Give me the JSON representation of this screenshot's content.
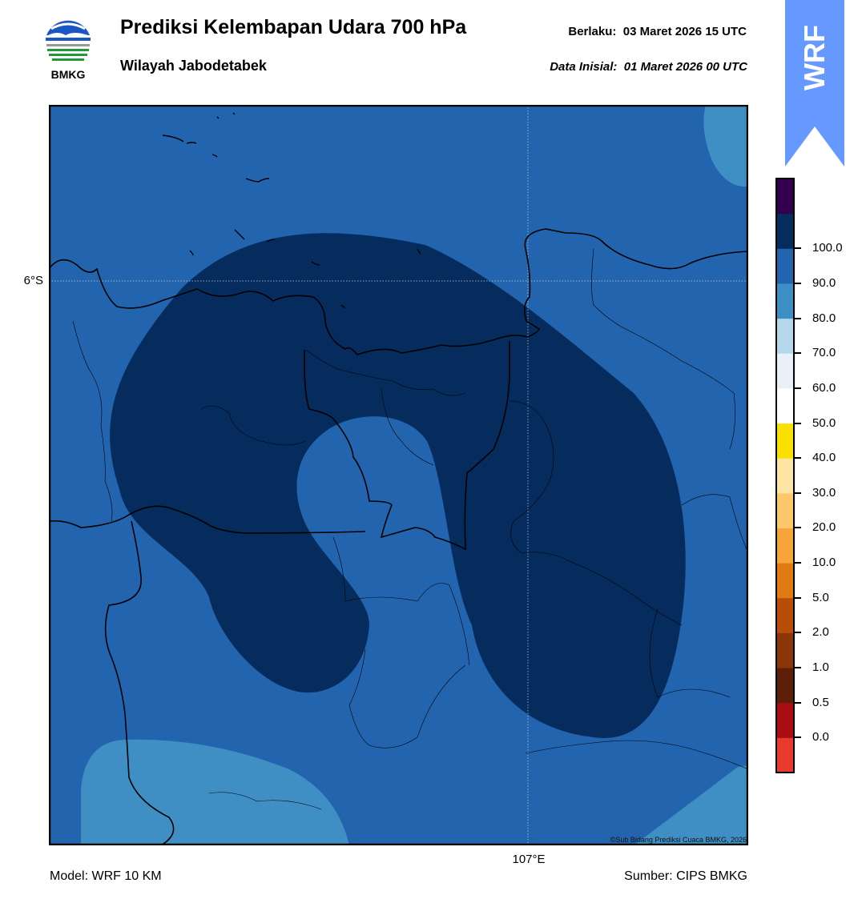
{
  "header": {
    "logo_text": "BMKG",
    "title": "Prediksi Kelembapan Udara 700 hPa",
    "subtitle": "Wilayah Jabodetabek",
    "valid_label": "Berlaku:",
    "valid_value": "03 Maret 2026 15 UTC",
    "init_label": "Data Inisial:",
    "init_value": "01 Maret 2026 00 UTC"
  },
  "badge": {
    "text": "WRF",
    "color": "#6699ff"
  },
  "map": {
    "lat_label": "6°S",
    "lon_label": "107°E",
    "copyright": "©Sub Bidang Prediksi Cuaca BMKG, 2026",
    "fill_colors": {
      "band_80_90": "#2364ae",
      "band_90_100": "#062c5e",
      "band_70_80": "#3f8fc4"
    }
  },
  "colorbar": {
    "ticks": [
      "100.0",
      "90.0",
      "80.0",
      "70.0",
      "60.0",
      "50.0",
      "40.0",
      "30.0",
      "20.0",
      "10.0",
      "5.0",
      "2.0",
      "1.0",
      "0.5",
      "0.0"
    ],
    "colors": [
      "#e8392d",
      "#a80d14",
      "#5e1f0a",
      "#8a3608",
      "#b84d08",
      "#e07a12",
      "#f7a43a",
      "#fdc86c",
      "#fde5a4",
      "#f8e000",
      "#ffffff",
      "#e9f1f8",
      "#b4d8ea",
      "#3e90c4",
      "#2364ae",
      "#062c5e",
      "#33004d"
    ]
  },
  "footer": {
    "model": "Model: WRF 10 KM",
    "source": "Sumber: CIPS BMKG"
  }
}
